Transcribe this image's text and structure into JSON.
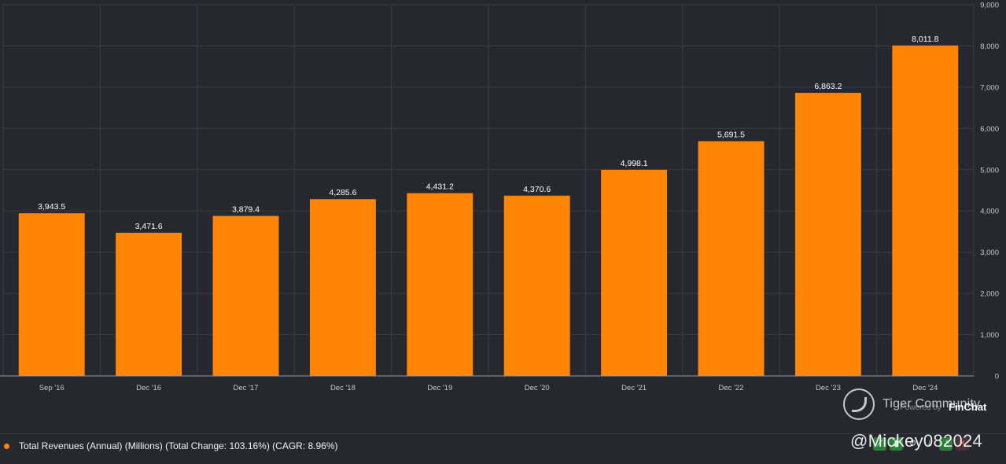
{
  "chart_data": {
    "type": "bar",
    "title": "",
    "xlabel": "",
    "ylabel": "",
    "categories": [
      "Sep '16",
      "Dec '16",
      "Dec '17",
      "Dec '18",
      "Dec '19",
      "Dec '20",
      "Dec '21",
      "Dec '22",
      "Dec '23",
      "Dec '24"
    ],
    "values": [
      3943.5,
      3471.6,
      3879.4,
      4285.6,
      4431.2,
      4370.6,
      4998.1,
      5691.5,
      6863.2,
      8011.8
    ],
    "value_labels": [
      "3,943.5",
      "3,471.6",
      "3,879.4",
      "4,285.6",
      "4,431.2",
      "4,370.6",
      "4,998.1",
      "5,691.5",
      "6,863.2",
      "8,011.8"
    ],
    "ylim": [
      0,
      9000
    ],
    "yticks": [
      0,
      1000,
      2000,
      3000,
      4000,
      5000,
      6000,
      7000,
      8000,
      9000
    ],
    "ytick_labels": [
      "0",
      "1,000",
      "2,000",
      "3,000",
      "4,000",
      "5,000",
      "6,000",
      "7,000",
      "8,000",
      "9,000"
    ],
    "y_axis_side": "right",
    "grid": true,
    "legend_position": "bottom-left",
    "series_name": "Total Revenues (Annual) (Millions) (Total Change: 103.16%) (CAGR: 8.96%)"
  },
  "colors": {
    "background": "#27272f",
    "bar": "#ff8507",
    "grid": "#3c3c45",
    "label": "#ffffff",
    "tick": "#c9c9c9"
  },
  "watermark": {
    "brand": "Tiger Community",
    "provider": "Powered by",
    "finchat": "FinChat",
    "handle": "@Mickey082024"
  },
  "toolbar": {
    "icons": [
      "line-chart-icon",
      "bar-chart-icon",
      "settings-icon",
      "download-icon",
      "share-icon",
      "close-icon"
    ],
    "glyphs": [
      "⟋",
      "▮",
      "⚙",
      "⤓",
      "↗",
      "✕"
    ]
  }
}
